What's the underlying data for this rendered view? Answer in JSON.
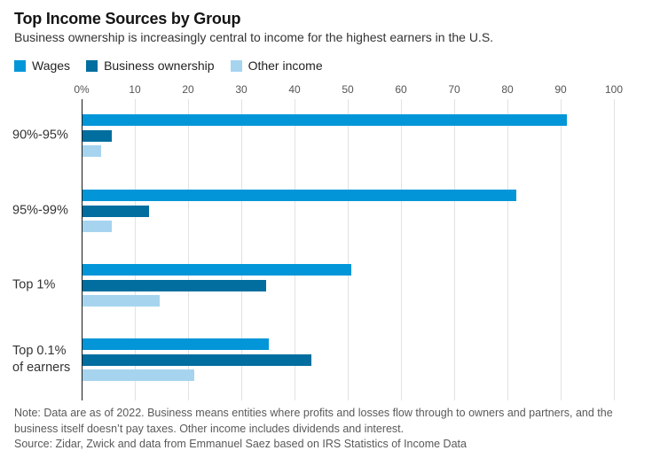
{
  "header": {
    "title": "Top Income Sources by Group",
    "subtitle": "Business ownership is increasingly central to income for the highest earners in the U.S."
  },
  "chart_data": {
    "type": "bar",
    "orientation": "horizontal",
    "title": "Top Income Sources by Group",
    "categories": [
      "90%-95%",
      "95%-99%",
      "Top 1%",
      "Top 0.1%\nof earners"
    ],
    "series": [
      {
        "name": "Wages",
        "color": "#0296d8",
        "values": [
          91,
          81.5,
          50.5,
          35
        ]
      },
      {
        "name": "Business ownership",
        "color": "#016e9f",
        "values": [
          5.5,
          12.5,
          34.5,
          43
        ]
      },
      {
        "name": "Other income",
        "color": "#a6d4ef",
        "values": [
          3.5,
          5.5,
          14.5,
          21
        ]
      }
    ],
    "x_axis": {
      "min": 0,
      "max": 100,
      "tick_interval": 10,
      "tick_labels": [
        "0%",
        "10",
        "20",
        "30",
        "40",
        "50",
        "60",
        "70",
        "80",
        "90",
        "100"
      ]
    },
    "legend_position": "top",
    "grid": true
  },
  "footer": {
    "note": "Note: Data are as of 2022. Business means entities where profits and losses flow through to owners and partners, and the business itself doesn’t pay taxes. Other income includes dividends and interest.",
    "source": "Source: Zidar, Zwick and data from Emmanuel Saez based on IRS Statistics of Income Data"
  }
}
